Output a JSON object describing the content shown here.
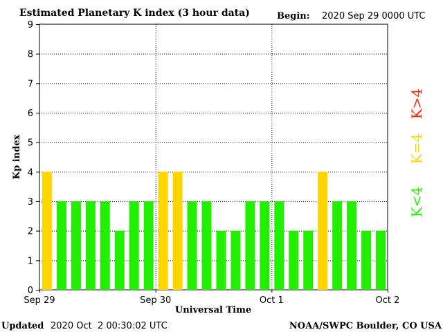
{
  "chart_data": {
    "type": "bar",
    "title": "Estimated Planetary K index (3 hour data)",
    "begin_label": "Begin:",
    "begin_value": "2020 Sep 29 0000 UTC",
    "xlabel": "Universal Time",
    "ylabel": "Kp index",
    "ylim": [
      0,
      9
    ],
    "yticks": [
      "0",
      "1",
      "2",
      "3",
      "4",
      "5",
      "6",
      "7",
      "8",
      "9"
    ],
    "x_tick_labels": [
      "Sep 29",
      "Sep 30",
      "Oct 1",
      "Oct 2"
    ],
    "grid": "dotted",
    "values": [
      4,
      3,
      3,
      3,
      3,
      2,
      3,
      3,
      4,
      4,
      3,
      3,
      2,
      2,
      3,
      3,
      3,
      2,
      2,
      4,
      3,
      3,
      2,
      2
    ],
    "bar_colors": {
      "below_4": "#22ee00",
      "equal_4": "#ffd500",
      "above_4": "#ff2200"
    },
    "legend": {
      "placement": "right",
      "items": [
        {
          "label": "K<4",
          "color": "#22ee00"
        },
        {
          "label": "K=4",
          "color": "#ffd500"
        },
        {
          "label": "K>4",
          "color": "#ff2200"
        }
      ]
    }
  },
  "footer": {
    "updated_label": "Updated",
    "updated_value": "2020 Oct  2 00:30:02 UTC",
    "credit": "NOAA/SWPC Boulder, CO USA"
  }
}
